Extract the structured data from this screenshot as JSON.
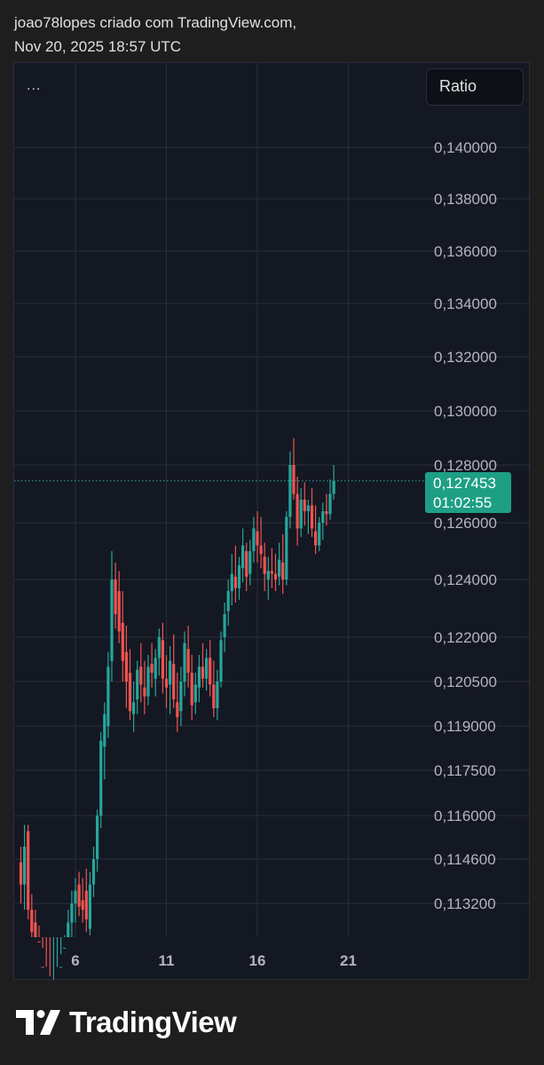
{
  "header": {
    "line1": "joao78lopes criado com TradingView.com,",
    "line2": "Nov 20, 2025 18:57 UTC"
  },
  "toolbar": {
    "menu_label": "...",
    "symbol_label": "Ratio"
  },
  "price_tag": {
    "price": "0,127453",
    "countdown": "01:02:55"
  },
  "footer": {
    "brand": "TradingView"
  },
  "colors": {
    "background": "#1e1e1e",
    "chart_bg": "#141823",
    "grid": "#2a2e39",
    "up": "#26a69a",
    "down": "#ef5350",
    "label": "#b2b5be",
    "price_tag": "#1e9f85"
  },
  "chart_data": {
    "type": "candlestick",
    "title": "",
    "xlabel": "",
    "ylabel": "",
    "x_ticks": [
      {
        "label": "6",
        "day": 6
      },
      {
        "label": "11",
        "day": 11
      },
      {
        "label": "16",
        "day": 16
      },
      {
        "label": "21",
        "day": 21
      }
    ],
    "y_ticks": [
      {
        "label": "0,140000",
        "value": 0.14
      },
      {
        "label": "0,138000",
        "value": 0.138
      },
      {
        "label": "0,136000",
        "value": 0.136
      },
      {
        "label": "0,134000",
        "value": 0.134
      },
      {
        "label": "0,132000",
        "value": 0.132
      },
      {
        "label": "0,130000",
        "value": 0.13
      },
      {
        "label": "0,128000",
        "value": 0.128
      },
      {
        "label": "0,126000",
        "value": 0.126
      },
      {
        "label": "0,124000",
        "value": 0.124
      },
      {
        "label": "0,122000",
        "value": 0.122
      },
      {
        "label": "0,120500",
        "value": 0.1205
      },
      {
        "label": "0,119000",
        "value": 0.119
      },
      {
        "label": "0,117500",
        "value": 0.1175
      },
      {
        "label": "0,116000",
        "value": 0.116
      },
      {
        "label": "0,114600",
        "value": 0.1146
      },
      {
        "label": "0,113200",
        "value": 0.1132
      }
    ],
    "last_price": 0.127453,
    "candles": [
      [
        3.0,
        0.1145,
        0.115,
        0.1132,
        0.1138
      ],
      [
        3.2,
        0.1138,
        0.1157,
        0.113,
        0.115
      ],
      [
        3.4,
        0.1155,
        0.1157,
        0.1127,
        0.113
      ],
      [
        3.6,
        0.113,
        0.1135,
        0.1118,
        0.1123
      ],
      [
        3.8,
        0.1126,
        0.113,
        0.111,
        0.1115
      ],
      [
        4.0,
        0.112,
        0.1125,
        0.1104,
        0.111
      ],
      [
        4.2,
        0.1112,
        0.1118,
        0.11,
        0.1104
      ],
      [
        4.4,
        0.1106,
        0.1112,
        0.1099,
        0.1102
      ],
      [
        4.6,
        0.1103,
        0.1109,
        0.1097,
        0.1099
      ],
      [
        4.8,
        0.11,
        0.1108,
        0.1096,
        0.1104
      ],
      [
        5.0,
        0.1104,
        0.1112,
        0.1098,
        0.1107
      ],
      [
        5.2,
        0.1107,
        0.1116,
        0.1103,
        0.1112
      ],
      [
        5.4,
        0.1112,
        0.1122,
        0.1108,
        0.1118
      ],
      [
        5.6,
        0.1118,
        0.113,
        0.1114,
        0.1126
      ],
      [
        5.8,
        0.1126,
        0.1136,
        0.112,
        0.1132
      ],
      [
        6.0,
        0.1132,
        0.114,
        0.1126,
        0.1136
      ],
      [
        6.2,
        0.1138,
        0.1142,
        0.1128,
        0.1131
      ],
      [
        6.4,
        0.1133,
        0.114,
        0.1126,
        0.113
      ],
      [
        6.6,
        0.1136,
        0.1143,
        0.1123,
        0.1127
      ],
      [
        6.8,
        0.1124,
        0.1142,
        0.1122,
        0.1138
      ],
      [
        7.0,
        0.1138,
        0.115,
        0.1134,
        0.1146
      ],
      [
        7.2,
        0.1146,
        0.1162,
        0.1142,
        0.116
      ],
      [
        7.4,
        0.116,
        0.1188,
        0.1156,
        0.1185
      ],
      [
        7.6,
        0.1183,
        0.1198,
        0.1172,
        0.1194
      ],
      [
        7.8,
        0.119,
        0.1215,
        0.1186,
        0.121
      ],
      [
        8.0,
        0.1212,
        0.125,
        0.1205,
        0.124
      ],
      [
        8.2,
        0.124,
        0.1246,
        0.1223,
        0.1228
      ],
      [
        8.4,
        0.1236,
        0.1243,
        0.1218,
        0.1222
      ],
      [
        8.6,
        0.1225,
        0.1236,
        0.1205,
        0.1212
      ],
      [
        8.8,
        0.1215,
        0.1224,
        0.1196,
        0.1205
      ],
      [
        9.0,
        0.1208,
        0.1216,
        0.1192,
        0.1195
      ],
      [
        9.2,
        0.1194,
        0.1205,
        0.1188,
        0.1198
      ],
      [
        9.4,
        0.1199,
        0.1212,
        0.1194,
        0.1209
      ],
      [
        9.6,
        0.121,
        0.1218,
        0.1198,
        0.1204
      ],
      [
        9.8,
        0.1203,
        0.1212,
        0.1194,
        0.12
      ],
      [
        10.0,
        0.12,
        0.1214,
        0.1197,
        0.121
      ],
      [
        10.2,
        0.1211,
        0.1218,
        0.1203,
        0.1208
      ],
      [
        10.4,
        0.1206,
        0.1216,
        0.12,
        0.1213
      ],
      [
        10.6,
        0.1213,
        0.1223,
        0.1207,
        0.122
      ],
      [
        10.8,
        0.1219,
        0.1225,
        0.1201,
        0.1206
      ],
      [
        11.0,
        0.1206,
        0.1214,
        0.1196,
        0.1203
      ],
      [
        11.2,
        0.1204,
        0.1217,
        0.1194,
        0.1212
      ],
      [
        11.4,
        0.1211,
        0.1221,
        0.1196,
        0.1199
      ],
      [
        11.6,
        0.1198,
        0.1208,
        0.1188,
        0.1193
      ],
      [
        11.8,
        0.1195,
        0.121,
        0.119,
        0.1205
      ],
      [
        12.0,
        0.1205,
        0.1222,
        0.12,
        0.1218
      ],
      [
        12.2,
        0.1216,
        0.1224,
        0.1203,
        0.1208
      ],
      [
        12.4,
        0.1208,
        0.1214,
        0.1192,
        0.1197
      ],
      [
        12.6,
        0.1198,
        0.1208,
        0.1194,
        0.1204
      ],
      [
        12.8,
        0.1203,
        0.1214,
        0.1198,
        0.121
      ],
      [
        13.0,
        0.121,
        0.1218,
        0.1203,
        0.1206
      ],
      [
        13.2,
        0.1206,
        0.1216,
        0.1202,
        0.1213
      ],
      [
        13.4,
        0.1213,
        0.1219,
        0.12,
        0.1204
      ],
      [
        13.6,
        0.1204,
        0.1212,
        0.1193,
        0.1196
      ],
      [
        13.8,
        0.1196,
        0.1209,
        0.1192,
        0.1205
      ],
      [
        14.0,
        0.1205,
        0.1222,
        0.1203,
        0.1219
      ],
      [
        14.2,
        0.122,
        0.1232,
        0.1215,
        0.1228
      ],
      [
        14.4,
        0.1229,
        0.124,
        0.1224,
        0.1236
      ],
      [
        14.6,
        0.1236,
        0.1249,
        0.1231,
        0.1242
      ],
      [
        14.8,
        0.1241,
        0.1252,
        0.1232,
        0.1237
      ],
      [
        15.0,
        0.1237,
        0.1248,
        0.1233,
        0.1245
      ],
      [
        15.2,
        0.1244,
        0.1258,
        0.1239,
        0.1252
      ],
      [
        15.4,
        0.125,
        0.1253,
        0.1236,
        0.1241
      ],
      [
        15.6,
        0.1242,
        0.1254,
        0.1238,
        0.125
      ],
      [
        15.8,
        0.125,
        0.1262,
        0.1246,
        0.1258
      ],
      [
        16.0,
        0.1257,
        0.1264,
        0.1246,
        0.1252
      ],
      [
        16.2,
        0.1252,
        0.1262,
        0.1244,
        0.1249
      ],
      [
        16.4,
        0.1248,
        0.1253,
        0.1236,
        0.1242
      ],
      [
        16.6,
        0.124,
        0.1248,
        0.1233,
        0.1243
      ],
      [
        16.8,
        0.1243,
        0.1251,
        0.1237,
        0.1242
      ],
      [
        17.0,
        0.1242,
        0.1249,
        0.1236,
        0.124
      ],
      [
        17.2,
        0.1241,
        0.1253,
        0.1238,
        0.1247
      ],
      [
        17.4,
        0.1246,
        0.1256,
        0.1235,
        0.124
      ],
      [
        17.6,
        0.124,
        0.1264,
        0.1238,
        0.1262
      ],
      [
        17.8,
        0.1262,
        0.1285,
        0.1258,
        0.128
      ],
      [
        18.0,
        0.128,
        0.129,
        0.1268,
        0.127
      ],
      [
        18.2,
        0.127,
        0.1276,
        0.1252,
        0.1258
      ],
      [
        18.4,
        0.1258,
        0.1272,
        0.1255,
        0.1268
      ],
      [
        18.6,
        0.1268,
        0.1274,
        0.1259,
        0.1264
      ],
      [
        18.8,
        0.1264,
        0.1268,
        0.1256,
        0.1266
      ],
      [
        19.0,
        0.1266,
        0.1272,
        0.1255,
        0.1258
      ],
      [
        19.2,
        0.1257,
        0.1266,
        0.1249,
        0.1252
      ],
      [
        19.4,
        0.1252,
        0.1262,
        0.125,
        0.126
      ],
      [
        19.6,
        0.126,
        0.1267,
        0.1254,
        0.1264
      ],
      [
        19.8,
        0.1264,
        0.127,
        0.1259,
        0.1263
      ],
      [
        20.0,
        0.1263,
        0.1275,
        0.1261,
        0.127
      ],
      [
        20.2,
        0.127,
        0.128,
        0.1268,
        0.12745
      ]
    ],
    "grid": true
  }
}
